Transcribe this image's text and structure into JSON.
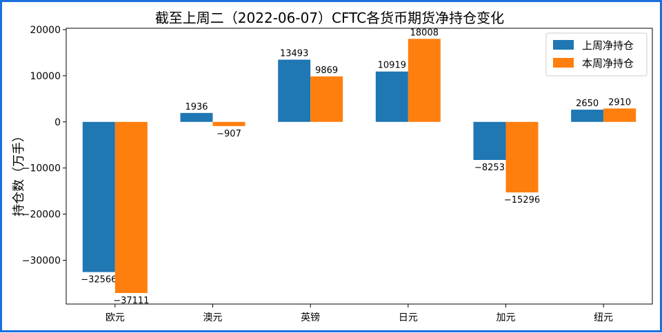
{
  "chart_data": {
    "type": "bar",
    "title": "截至上周二（2022-06-07）CFTC各货币期货净持仓变化",
    "xlabel": "",
    "ylabel": "持仓数（万手）",
    "categories": [
      "欧元",
      "澳元",
      "英镑",
      "日元",
      "加元",
      "纽元"
    ],
    "series": [
      {
        "name": "上周净持仓",
        "color": "#1f77b4",
        "values": [
          -32566,
          1936,
          13493,
          10919,
          -8253,
          2650
        ]
      },
      {
        "name": "本周净持仓",
        "color": "#ff7f0e",
        "values": [
          -37111,
          -907,
          9869,
          18008,
          -15296,
          2910
        ]
      }
    ],
    "ylim": [
      -39500,
      20300
    ],
    "yticks": [
      20000,
      10000,
      0,
      -10000,
      -20000,
      -30000
    ],
    "ytick_labels": [
      "20000",
      "10000",
      "0",
      "−10000",
      "−20000",
      "−30000"
    ],
    "legend_position": "top-right",
    "grid": false
  }
}
